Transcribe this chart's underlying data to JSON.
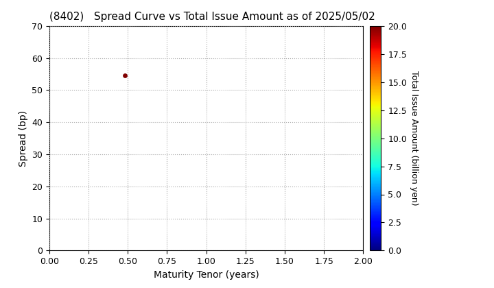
{
  "title": "(8402)   Spread Curve vs Total Issue Amount as of 2025/05/02",
  "xlabel": "Maturity Tenor (years)",
  "ylabel": "Spread (bp)",
  "colorbar_label": "Total Issue Amount (billion yen)",
  "xlim": [
    0.0,
    2.0
  ],
  "ylim": [
    0,
    70
  ],
  "xticks": [
    0.0,
    0.25,
    0.5,
    0.75,
    1.0,
    1.25,
    1.5,
    1.75,
    2.0
  ],
  "yticks": [
    0,
    10,
    20,
    30,
    40,
    50,
    60,
    70
  ],
  "colorbar_ticks": [
    0.0,
    2.5,
    5.0,
    7.5,
    10.0,
    12.5,
    15.0,
    17.5,
    20.0
  ],
  "colorbar_vmin": 0.0,
  "colorbar_vmax": 20.0,
  "scatter_x": [
    0.48
  ],
  "scatter_y": [
    54.5
  ],
  "scatter_values": [
    20.0
  ],
  "scatter_size": 15,
  "colormap": "jet",
  "background_color": "#ffffff",
  "grid_color": "#aaaaaa",
  "grid_style": "dotted",
  "title_fontsize": 11,
  "axis_label_fontsize": 10,
  "tick_fontsize": 9,
  "colorbar_tick_fontsize": 9,
  "colorbar_label_fontsize": 9
}
